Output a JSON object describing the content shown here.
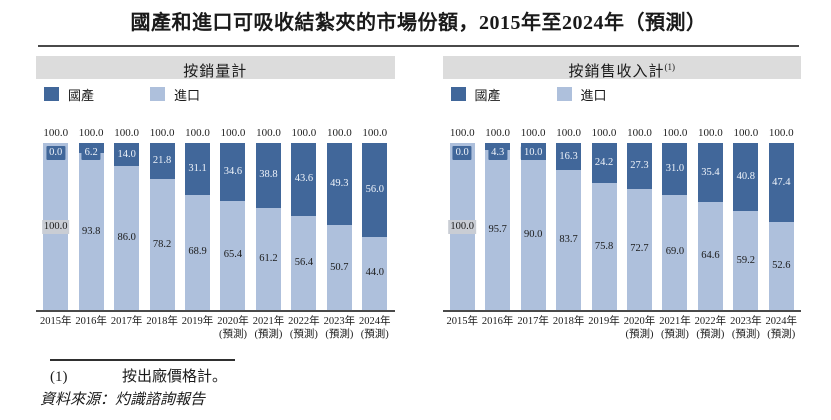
{
  "page": {
    "title": "國產和進口可吸收結紮夾的市場份額，2015年至2024年（預測）"
  },
  "colors": {
    "domestic": "#41679a",
    "import": "#aec0dc",
    "panel_header_bg": "#dcdcdc",
    "axis_line": "#4a4a4a",
    "highlight_label_bg": "#c9cdd4"
  },
  "chart_data": [
    {
      "type": "bar",
      "stacked": true,
      "title": "按銷量計",
      "title_sup": "",
      "unit": "%",
      "ylim": [
        0,
        100
      ],
      "legend_position": "top-left",
      "categories": [
        "2015年",
        "2016年",
        "2017年",
        "2018年",
        "2019年",
        "2020年 (預測)",
        "2021年 (預測)",
        "2022年 (預測)",
        "2023年 (預測)",
        "2024年 (預測)"
      ],
      "totals": [
        100.0,
        100.0,
        100.0,
        100.0,
        100.0,
        100.0,
        100.0,
        100.0,
        100.0,
        100.0
      ],
      "series": [
        {
          "name": "國產",
          "color": "#41679a",
          "values": [
            0.0,
            6.2,
            14.0,
            21.8,
            31.1,
            34.6,
            38.8,
            43.6,
            49.3,
            56.0
          ]
        },
        {
          "name": "進口",
          "color": "#aec0dc",
          "values": [
            100.0,
            93.8,
            86.0,
            78.2,
            68.9,
            65.4,
            61.2,
            56.4,
            50.7,
            44.0
          ]
        }
      ]
    },
    {
      "type": "bar",
      "stacked": true,
      "title": "按銷售收入計",
      "title_sup": "(1)",
      "unit": "%",
      "ylim": [
        0,
        100
      ],
      "legend_position": "top-left",
      "categories": [
        "2015年",
        "2016年",
        "2017年",
        "2018年",
        "2019年",
        "2020年 (預測)",
        "2021年 (預測)",
        "2022年 (預測)",
        "2023年 (預測)",
        "2024年 (預測)"
      ],
      "totals": [
        100.0,
        100.0,
        100.0,
        100.0,
        100.0,
        100.0,
        100.0,
        100.0,
        100.0,
        100.0
      ],
      "series": [
        {
          "name": "國產",
          "color": "#41679a",
          "values": [
            0.0,
            4.3,
            10.0,
            16.3,
            24.2,
            27.3,
            31.0,
            35.4,
            40.8,
            47.4
          ]
        },
        {
          "name": "進口",
          "color": "#aec0dc",
          "values": [
            100.0,
            95.7,
            90.0,
            83.7,
            75.8,
            72.7,
            69.0,
            64.6,
            59.2,
            52.6
          ]
        }
      ]
    }
  ],
  "footnote": {
    "marker": "(1)",
    "text": "按出廠價格計。"
  },
  "source": "資料來源：灼識諮詢報告"
}
